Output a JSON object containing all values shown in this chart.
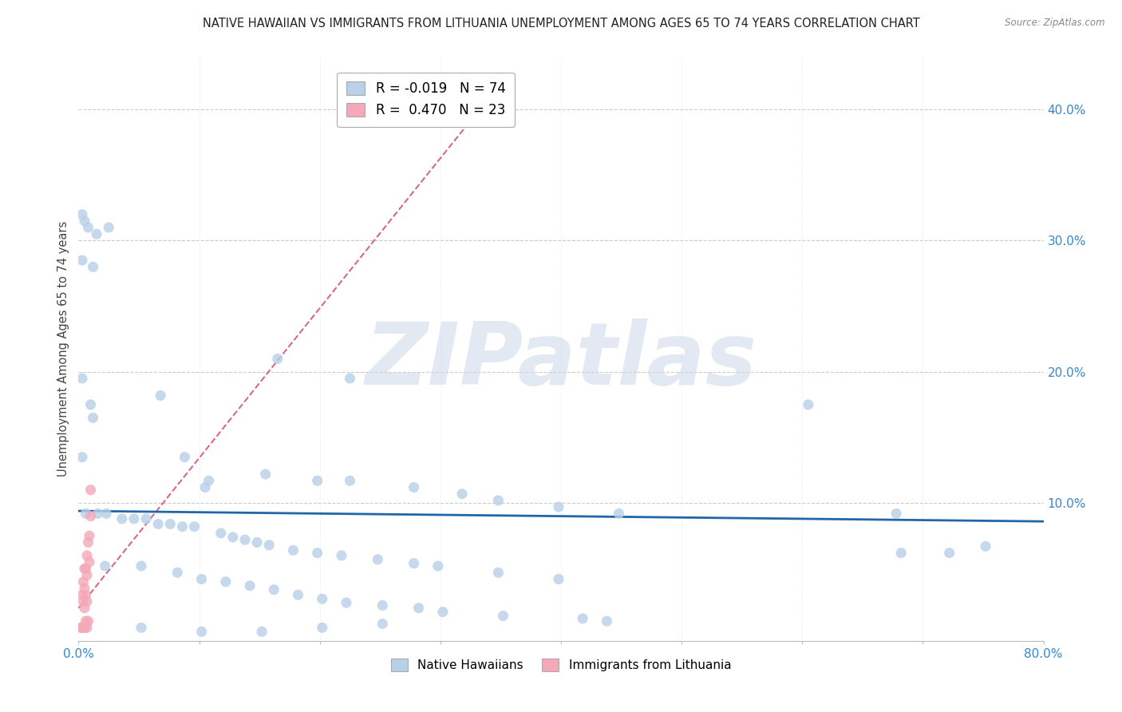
{
  "title": "NATIVE HAWAIIAN VS IMMIGRANTS FROM LITHUANIA UNEMPLOYMENT AMONG AGES 65 TO 74 YEARS CORRELATION CHART",
  "source": "Source: ZipAtlas.com",
  "ylabel": "Unemployment Among Ages 65 to 74 years",
  "xlim": [
    0.0,
    0.8
  ],
  "ylim": [
    -0.005,
    0.44
  ],
  "blue_color": "#b8d0e8",
  "pink_color": "#f4a8b8",
  "blue_trend_color": "#2266aa",
  "pink_trend_color": "#cc4466",
  "right_tick_color": "#3388cc",
  "watermark": "ZIPatlas",
  "legend1_label_blue": "R = -0.019   N = 74",
  "legend1_label_pink": "R =  0.470   N = 23",
  "legend2_label_blue": "Native Hawaiians",
  "legend2_label_pink": "Immigrants from Lithuania",
  "blue_trend_x": [
    0.0,
    0.8
  ],
  "blue_trend_y": [
    0.094,
    0.086
  ],
  "pink_trend_x": [
    0.0,
    0.35
  ],
  "pink_trend_y": [
    0.02,
    0.42
  ],
  "nh_x": [
    0.003,
    0.005,
    0.008,
    0.015,
    0.025,
    0.003,
    0.012,
    0.003,
    0.01,
    0.012,
    0.165,
    0.225,
    0.605,
    0.003,
    0.068,
    0.088,
    0.105,
    0.108,
    0.155,
    0.198,
    0.225,
    0.278,
    0.318,
    0.348,
    0.398,
    0.448,
    0.006,
    0.016,
    0.023,
    0.036,
    0.046,
    0.056,
    0.066,
    0.076,
    0.086,
    0.096,
    0.118,
    0.128,
    0.138,
    0.148,
    0.158,
    0.178,
    0.198,
    0.218,
    0.248,
    0.278,
    0.298,
    0.348,
    0.398,
    0.678,
    0.022,
    0.052,
    0.082,
    0.102,
    0.122,
    0.142,
    0.162,
    0.182,
    0.202,
    0.222,
    0.252,
    0.282,
    0.302,
    0.352,
    0.418,
    0.438,
    0.682,
    0.722,
    0.752,
    0.052,
    0.102,
    0.152,
    0.202,
    0.252
  ],
  "nh_y": [
    0.32,
    0.315,
    0.31,
    0.305,
    0.31,
    0.285,
    0.28,
    0.195,
    0.175,
    0.165,
    0.21,
    0.195,
    0.175,
    0.135,
    0.182,
    0.135,
    0.112,
    0.117,
    0.122,
    0.117,
    0.117,
    0.112,
    0.107,
    0.102,
    0.097,
    0.092,
    0.092,
    0.092,
    0.092,
    0.088,
    0.088,
    0.088,
    0.084,
    0.084,
    0.082,
    0.082,
    0.077,
    0.074,
    0.072,
    0.07,
    0.068,
    0.064,
    0.062,
    0.06,
    0.057,
    0.054,
    0.052,
    0.047,
    0.042,
    0.092,
    0.052,
    0.052,
    0.047,
    0.042,
    0.04,
    0.037,
    0.034,
    0.03,
    0.027,
    0.024,
    0.022,
    0.02,
    0.017,
    0.014,
    0.012,
    0.01,
    0.062,
    0.062,
    0.067,
    0.005,
    0.002,
    0.002,
    0.005,
    0.008
  ],
  "lit_x": [
    0.002,
    0.003,
    0.003,
    0.004,
    0.004,
    0.004,
    0.005,
    0.005,
    0.005,
    0.005,
    0.006,
    0.006,
    0.006,
    0.007,
    0.007,
    0.007,
    0.007,
    0.008,
    0.008,
    0.009,
    0.009,
    0.01,
    0.01
  ],
  "lit_y": [
    0.005,
    0.005,
    0.03,
    0.005,
    0.025,
    0.04,
    0.005,
    0.02,
    0.035,
    0.05,
    0.01,
    0.03,
    0.05,
    0.005,
    0.025,
    0.045,
    0.06,
    0.01,
    0.07,
    0.055,
    0.075,
    0.09,
    0.11
  ]
}
